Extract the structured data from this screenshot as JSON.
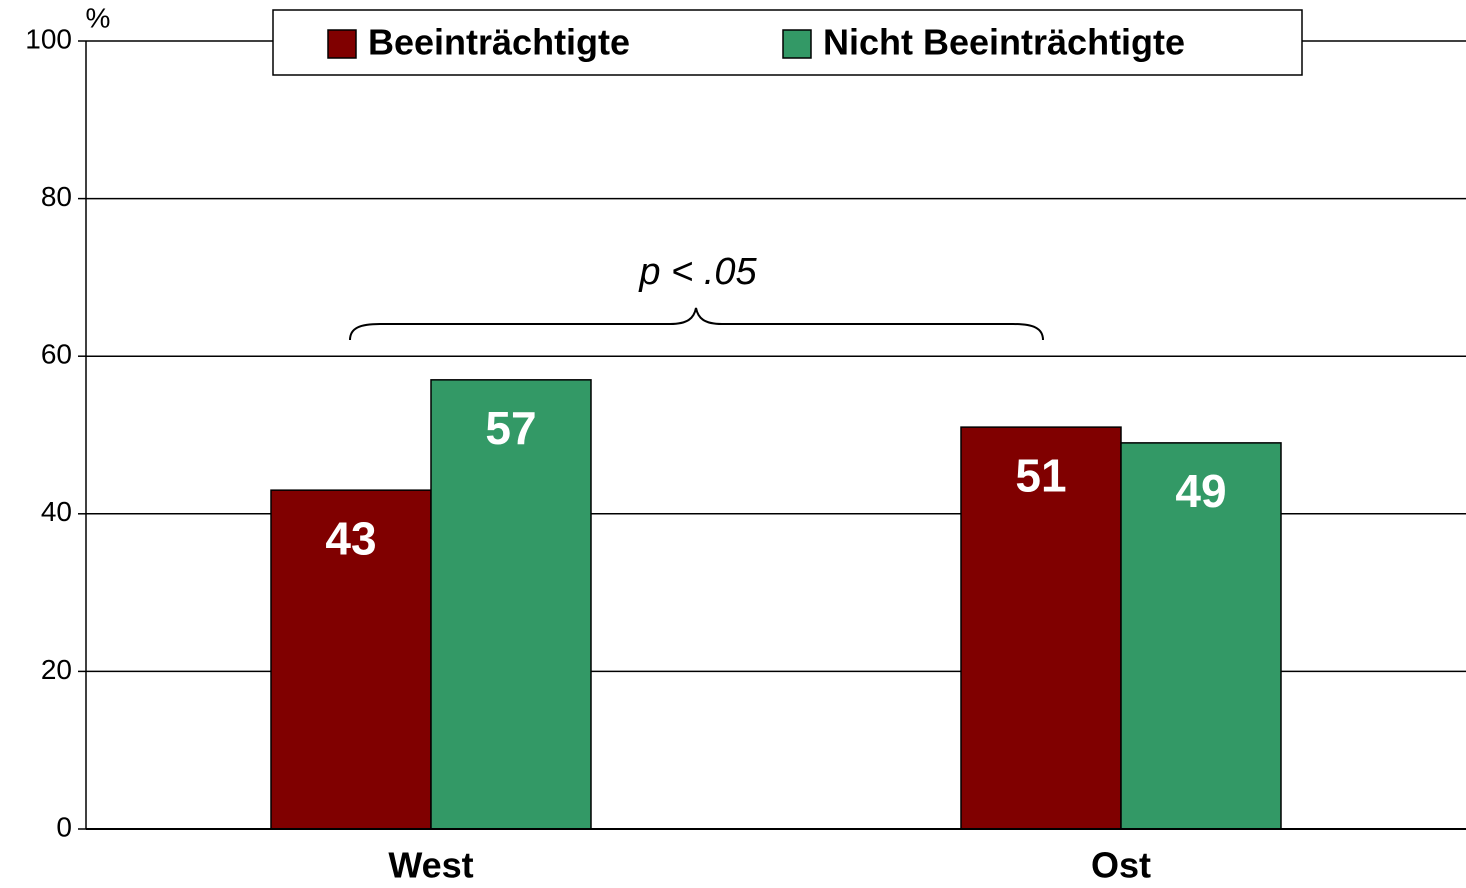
{
  "chart_data": {
    "type": "bar",
    "y_axis_label": "%",
    "annotation": "p < .05",
    "categories": [
      "West",
      "Ost"
    ],
    "series": [
      {
        "name": "Beeinträchtigte",
        "color": "#800000",
        "values": [
          43,
          51
        ]
      },
      {
        "name": "Nicht Beeinträchtigte",
        "color": "#339966",
        "values": [
          57,
          49
        ]
      }
    ],
    "ylim": [
      0,
      100
    ],
    "yticks": [
      0,
      20,
      40,
      60,
      80,
      100
    ],
    "grid": true,
    "legend": "top"
  }
}
